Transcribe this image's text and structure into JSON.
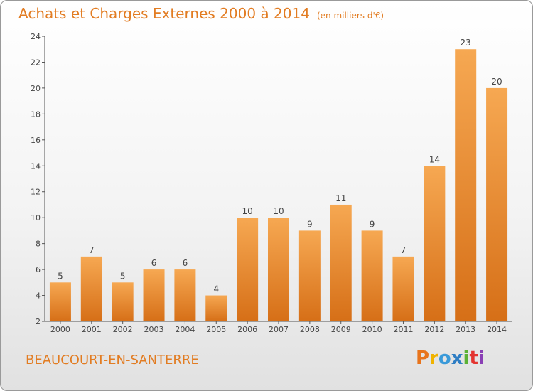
{
  "header": {
    "title": "Achats et Charges Externes 2000 à 2014",
    "unit": "(en milliers d'€)"
  },
  "footer": {
    "town": "BEAUCOURT-EN-SANTERRE",
    "logo": "Proxiti",
    "logo_colors": [
      "#e8741c",
      "#f0b300",
      "#3a9ad9",
      "#2f7ec4",
      "#5bb135",
      "#e3342f",
      "#8a3fb5"
    ]
  },
  "colors": {
    "bar_top": "#f6a852",
    "bar_bottom": "#d66f17",
    "title": "#e27c22"
  },
  "chart_data": {
    "type": "bar",
    "title": "Achats et Charges Externes 2000 à 2014",
    "subtitle": "(en milliers d'€)",
    "categories": [
      "2000",
      "2001",
      "2002",
      "2003",
      "2004",
      "2005",
      "2006",
      "2007",
      "2008",
      "2009",
      "2010",
      "2011",
      "2012",
      "2013",
      "2014"
    ],
    "values": [
      5,
      7,
      5,
      6,
      6,
      4,
      10,
      10,
      9,
      11,
      9,
      7,
      14,
      23,
      20
    ],
    "ylim": [
      2,
      24
    ],
    "yticks": [
      2,
      4,
      6,
      8,
      10,
      12,
      14,
      16,
      18,
      20,
      22,
      24
    ],
    "grid": false,
    "data_labels": true
  }
}
